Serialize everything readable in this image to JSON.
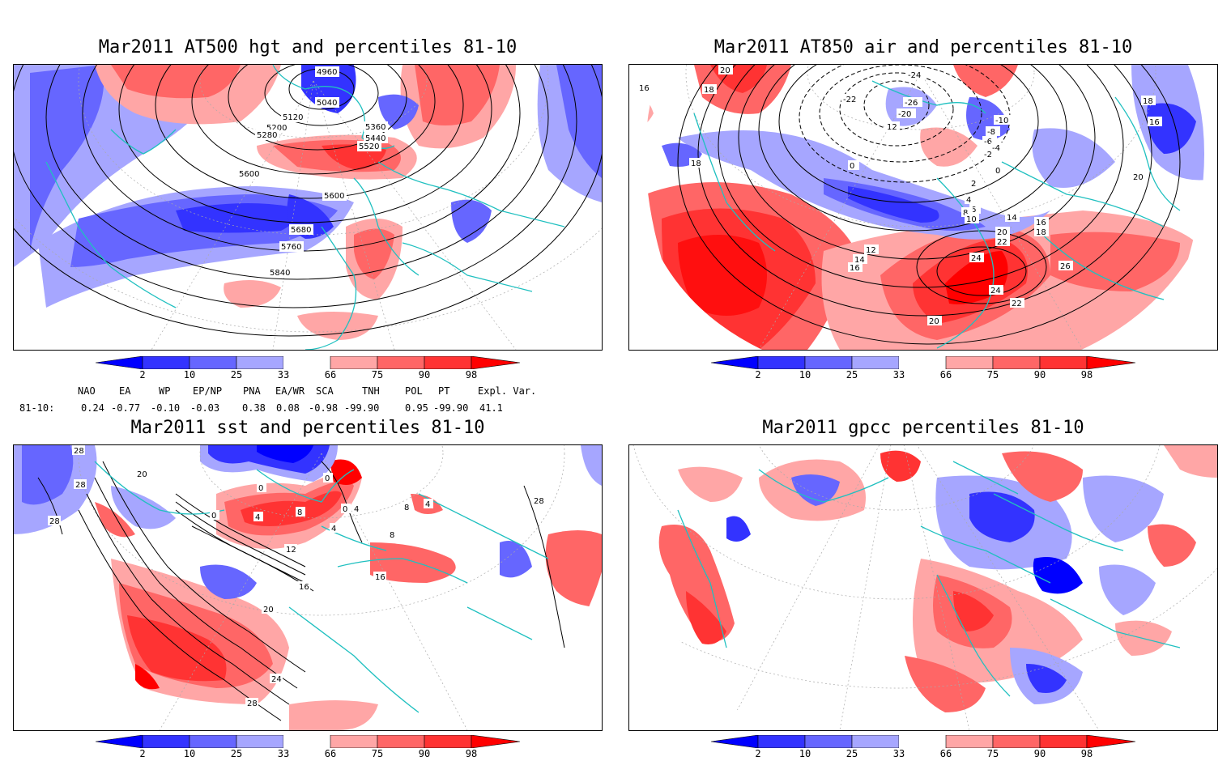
{
  "panels": [
    {
      "title": "Mar2011 AT500 hgt and percentiles 81-10",
      "contour_labels": [
        "4960",
        "5040",
        "5120",
        "5200",
        "5280",
        "5360",
        "5440",
        "5520",
        "5600",
        "5600",
        "5680",
        "5760",
        "5840"
      ]
    },
    {
      "title": "Mar2011 AT850 air and percentiles 81-10",
      "contour_labels": [
        "20",
        "16",
        "18",
        "18",
        "-24",
        "-22",
        "-26",
        "-20",
        "-10",
        "-8",
        "-6",
        "-4",
        "-2",
        "0",
        "0",
        "2",
        "4",
        "6",
        "8",
        "10",
        "12",
        "14",
        "16",
        "18",
        "20",
        "22",
        "24",
        "24",
        "22",
        "20",
        "26",
        "16",
        "18",
        "20",
        "12",
        "14",
        "16"
      ]
    },
    {
      "title": "Mar2011 sst and percentiles 81-10",
      "contour_labels": [
        "28",
        "20",
        "28",
        "28",
        "0",
        "0",
        "0",
        "4",
        "8",
        "0",
        "4",
        "4",
        "8",
        "12",
        "16",
        "16",
        "20",
        "24",
        "28",
        "28",
        "4",
        "8"
      ]
    },
    {
      "title": "Mar2011 gpcc percentiles 81-10",
      "contour_labels": []
    }
  ],
  "colorbar": {
    "labels": [
      "2",
      "10",
      "25",
      "33",
      "66",
      "75",
      "90",
      "98"
    ],
    "colors": [
      "#0000ff",
      "#3333ff",
      "#6666ff",
      "#a6a6ff",
      "#ffffff",
      "#ffa6a6",
      "#ff6666",
      "#ff3333",
      "#ff0000"
    ]
  },
  "indices": {
    "headers": [
      "NAO",
      "EA",
      "WP",
      "EP/NP",
      "PNA",
      "EA/WR",
      "SCA",
      "TNH",
      "POL",
      "PT",
      "Expl. Var."
    ],
    "row_label": "81-10:",
    "values": [
      "0.24",
      "-0.77",
      "-0.10",
      "-0.03",
      "0.38",
      "0.08",
      "-0.98",
      "-99.90",
      "0.95",
      "-99.90",
      "41.1"
    ]
  },
  "colors": {
    "coast": "#20c0c0",
    "blue_strong": "#0000ff",
    "blue_mid": "#4d4dff",
    "blue_light": "#a6a6ff",
    "red_light": "#ffa6a6",
    "red_mid": "#ff5555",
    "red_strong": "#ff0000"
  }
}
